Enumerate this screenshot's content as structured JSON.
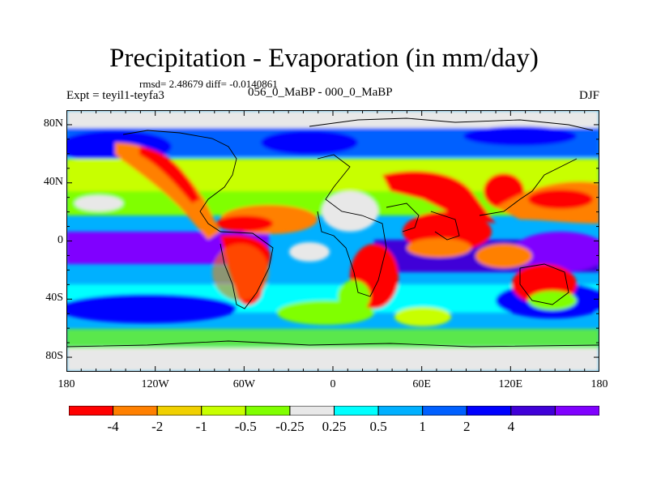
{
  "title": "Precipitation - Evaporation (in mm/day)",
  "stats": "rmsd= 2.48679 diff= -0.0140861",
  "experiment": "Expt = teyil1-teyfa3",
  "period": "056_0_MaBP - 000_0_MaBP",
  "season": "DJF",
  "chart_data": {
    "type": "heatmap",
    "title": "Precipitation - Evaporation (in mm/day)",
    "subtitle": "056_0_MaBP - 000_0_MaBP",
    "x_range": [
      -180,
      180
    ],
    "y_range": [
      -90,
      90
    ],
    "x_ticks": [
      {
        "value": -180,
        "label": "180"
      },
      {
        "value": -120,
        "label": "120W"
      },
      {
        "value": -60,
        "label": "60W"
      },
      {
        "value": 0,
        "label": "0"
      },
      {
        "value": 60,
        "label": "60E"
      },
      {
        "value": 120,
        "label": "120E"
      },
      {
        "value": 180,
        "label": "180"
      }
    ],
    "y_ticks": [
      {
        "value": 80,
        "label": "80N"
      },
      {
        "value": 40,
        "label": "40N"
      },
      {
        "value": 0,
        "label": "0"
      },
      {
        "value": -40,
        "label": "40S"
      },
      {
        "value": -80,
        "label": "80S"
      }
    ],
    "colorbar": {
      "colors": [
        "#ff0000",
        "#ff8000",
        "#f0d000",
        "#c8ff00",
        "#80ff00",
        "#e8e8e8",
        "#00ffff",
        "#00b0ff",
        "#0060ff",
        "#0000ff",
        "#4000d8",
        "#8000ff"
      ],
      "labels": [
        {
          "index": 1,
          "text": "-4"
        },
        {
          "index": 2,
          "text": "-2"
        },
        {
          "index": 3,
          "text": "-1"
        },
        {
          "index": 4,
          "text": "-0.5"
        },
        {
          "index": 5,
          "text": "-0.25"
        },
        {
          "index": 6,
          "text": "0.25"
        },
        {
          "index": 7,
          "text": "0.5"
        },
        {
          "index": 8,
          "text": "1"
        },
        {
          "index": 9,
          "text": "2"
        },
        {
          "index": 10,
          "text": "4"
        }
      ]
    }
  }
}
